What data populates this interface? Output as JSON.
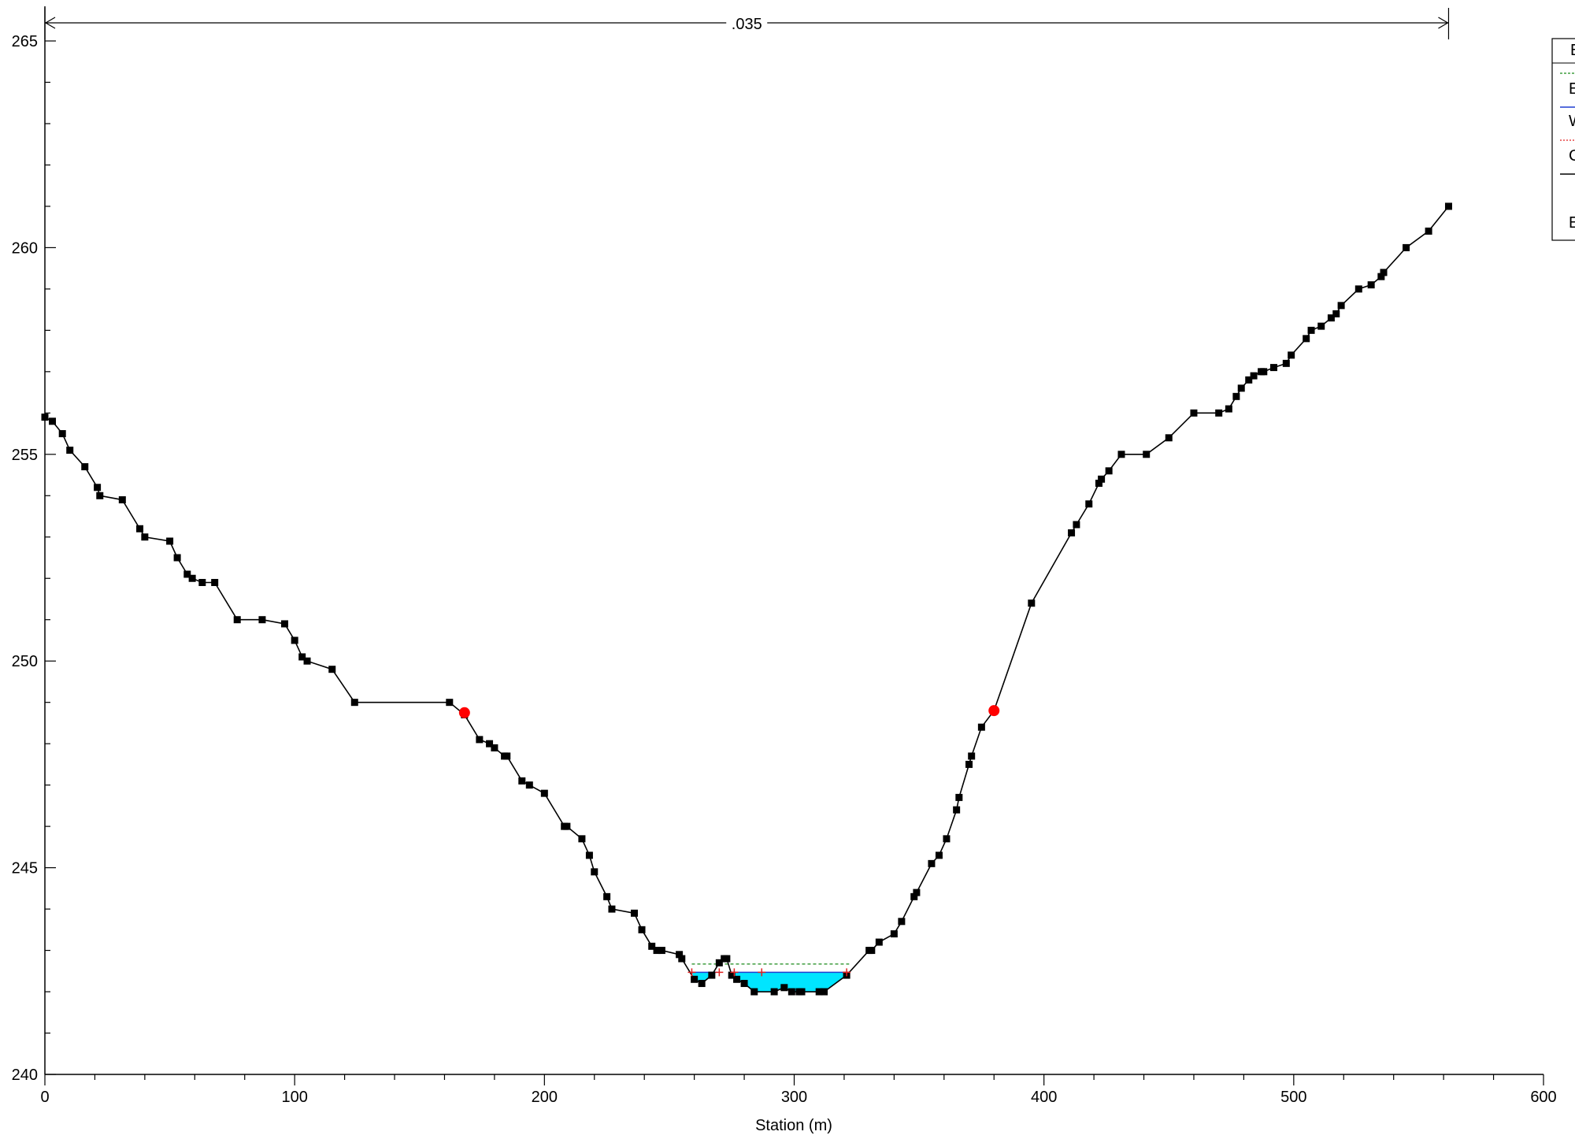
{
  "chart_data": {
    "type": "line",
    "xlabel": "Station (m)",
    "ylabel": "",
    "xlim": [
      0,
      600
    ],
    "ylim": [
      240,
      265
    ],
    "x_ticks": [
      "0",
      "100",
      "200",
      "300",
      "400",
      "500",
      "600"
    ],
    "y_ticks": [
      "240",
      "245",
      "250",
      "255",
      "260",
      "265"
    ],
    "mannings_n_label": ".035",
    "mannings_n_range": [
      0,
      562
    ],
    "colors": {
      "ground": "#000000",
      "water": "#00e5ff",
      "ws_line": "#1f3fd0",
      "eg_line": "#1a8a1a",
      "crit_line": "#e02020",
      "bank_station": "#ff0000"
    },
    "legend_entries": [
      "E",
      "W",
      "C",
      "",
      "E"
    ],
    "ground": {
      "x": [
        0,
        3,
        7,
        10,
        16,
        21,
        22,
        31,
        38,
        40,
        50,
        53,
        57,
        59,
        63,
        68,
        77,
        87,
        96,
        100,
        103,
        105,
        115,
        124,
        162,
        168,
        174,
        178,
        180,
        184,
        185,
        191,
        194,
        200,
        208,
        209,
        215,
        218,
        220,
        225,
        227,
        236,
        239,
        243,
        245,
        247,
        254,
        255,
        260,
        263,
        267,
        270,
        272,
        273,
        275,
        277,
        280,
        284,
        292,
        296,
        299,
        302,
        303,
        310,
        312,
        321,
        330,
        331,
        334,
        340,
        343,
        348,
        349,
        355,
        358,
        361,
        365,
        366,
        370,
        371,
        375,
        380,
        395,
        411,
        413,
        418,
        422,
        423,
        426,
        431,
        441,
        450,
        460,
        470,
        474,
        477,
        479,
        482,
        484,
        487,
        488,
        492,
        497,
        499,
        505,
        507,
        511,
        515,
        517,
        519,
        526,
        531,
        535,
        536,
        545,
        554,
        562
      ],
      "y": [
        255.9,
        255.8,
        255.5,
        255.1,
        254.7,
        254.2,
        254.0,
        253.9,
        253.2,
        253.0,
        252.9,
        252.5,
        252.1,
        252.0,
        251.9,
        251.9,
        251.0,
        251.0,
        250.9,
        250.5,
        250.1,
        250.0,
        249.8,
        249.0,
        249.0,
        248.7,
        248.1,
        248.0,
        247.9,
        247.7,
        247.7,
        247.1,
        247.0,
        246.8,
        246.0,
        246.0,
        245.7,
        245.3,
        244.9,
        244.3,
        244.0,
        243.9,
        243.5,
        243.1,
        243.0,
        243.0,
        242.9,
        242.8,
        242.3,
        242.2,
        242.4,
        242.7,
        242.8,
        242.8,
        242.4,
        242.3,
        242.2,
        242.0,
        242.0,
        242.1,
        242.0,
        242.0,
        242.0,
        242.0,
        242.0,
        242.4,
        243.0,
        243.0,
        243.2,
        243.4,
        243.7,
        244.3,
        244.4,
        245.1,
        245.3,
        245.7,
        246.4,
        246.7,
        247.5,
        247.7,
        248.4,
        248.8,
        251.4,
        253.1,
        253.3,
        253.8,
        254.3,
        254.4,
        254.6,
        255.0,
        255.0,
        255.4,
        256.0,
        256.0,
        256.1,
        256.4,
        256.6,
        256.8,
        256.9,
        257.0,
        257.0,
        257.1,
        257.2,
        257.4,
        257.8,
        258.0,
        258.1,
        258.3,
        258.4,
        258.6,
        259.0,
        259.1,
        259.3,
        259.4,
        260.0,
        260.4,
        261.0
      ]
    },
    "bank_stations": [
      {
        "x": 168,
        "y": 248.75
      },
      {
        "x": 380,
        "y": 248.8
      }
    ],
    "water_surface": 242.47,
    "energy_grade": 242.67,
    "water_segments": [
      [
        259,
        269
      ],
      [
        276,
        322
      ]
    ],
    "critical_marks": [
      {
        "x": 259,
        "y": 242.47
      },
      {
        "x": 270,
        "y": 242.47
      },
      {
        "x": 276,
        "y": 242.47
      },
      {
        "x": 287,
        "y": 242.47
      },
      {
        "x": 321,
        "y": 242.47
      }
    ]
  }
}
